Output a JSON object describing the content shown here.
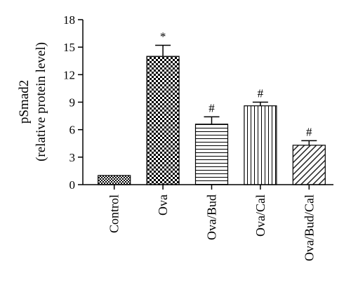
{
  "chart_data": {
    "type": "bar",
    "ylabel": "pSmad2",
    "ylabel_sub": "(relative protein level)",
    "ylim": [
      0,
      18
    ],
    "yticks": [
      0,
      3,
      6,
      9,
      12,
      15,
      18
    ],
    "categories": [
      "Control",
      "Ova",
      "Ova/Bud",
      "Ova/Cal",
      "Ova/Bud/Cal"
    ],
    "values": [
      1.0,
      14.0,
      6.6,
      8.6,
      4.3
    ],
    "errors": [
      0.0,
      1.2,
      0.8,
      0.4,
      0.5
    ],
    "annotations": [
      "",
      "*",
      "#",
      "#",
      "#"
    ],
    "patterns": [
      "checker-fine",
      "checker",
      "horizontal-lines",
      "vertical-lines",
      "diagonal-lines"
    ],
    "grid": false,
    "legend": "none"
  }
}
